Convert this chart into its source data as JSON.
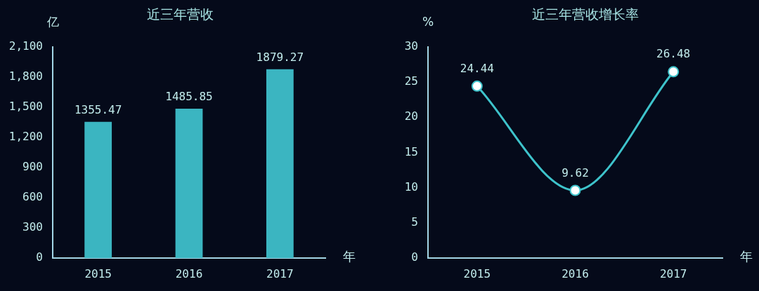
{
  "chart_data": [
    {
      "type": "bar",
      "title": "近三年营收",
      "ylabel": "亿",
      "xlabel": "年",
      "categories": [
        "2015",
        "2016",
        "2017"
      ],
      "values": [
        1355.47,
        1485.85,
        1879.27
      ],
      "color": "#3bb5c1",
      "ylim": [
        0,
        2100
      ],
      "yticks": [
        0,
        300,
        600,
        900,
        {
          "value": 1200,
          "label": "1,200"
        },
        {
          "value": 1500,
          "label": "1,500"
        },
        {
          "value": 1800,
          "label": "1,800"
        },
        {
          "value": 2100,
          "label": "2,100"
        }
      ],
      "data_labels": true
    },
    {
      "type": "line",
      "title": "近三年营收增长率",
      "ylabel": "%",
      "xlabel": "年",
      "categories": [
        "2015",
        "2016",
        "2017"
      ],
      "values": [
        24.44,
        9.62,
        26.48
      ],
      "color": "#3ec3cb",
      "marker": "circle",
      "line_style": "solid",
      "ylim": [
        0,
        30
      ],
      "yticks": [
        0,
        5,
        10,
        15,
        20,
        25,
        30
      ],
      "data_labels": true
    }
  ]
}
